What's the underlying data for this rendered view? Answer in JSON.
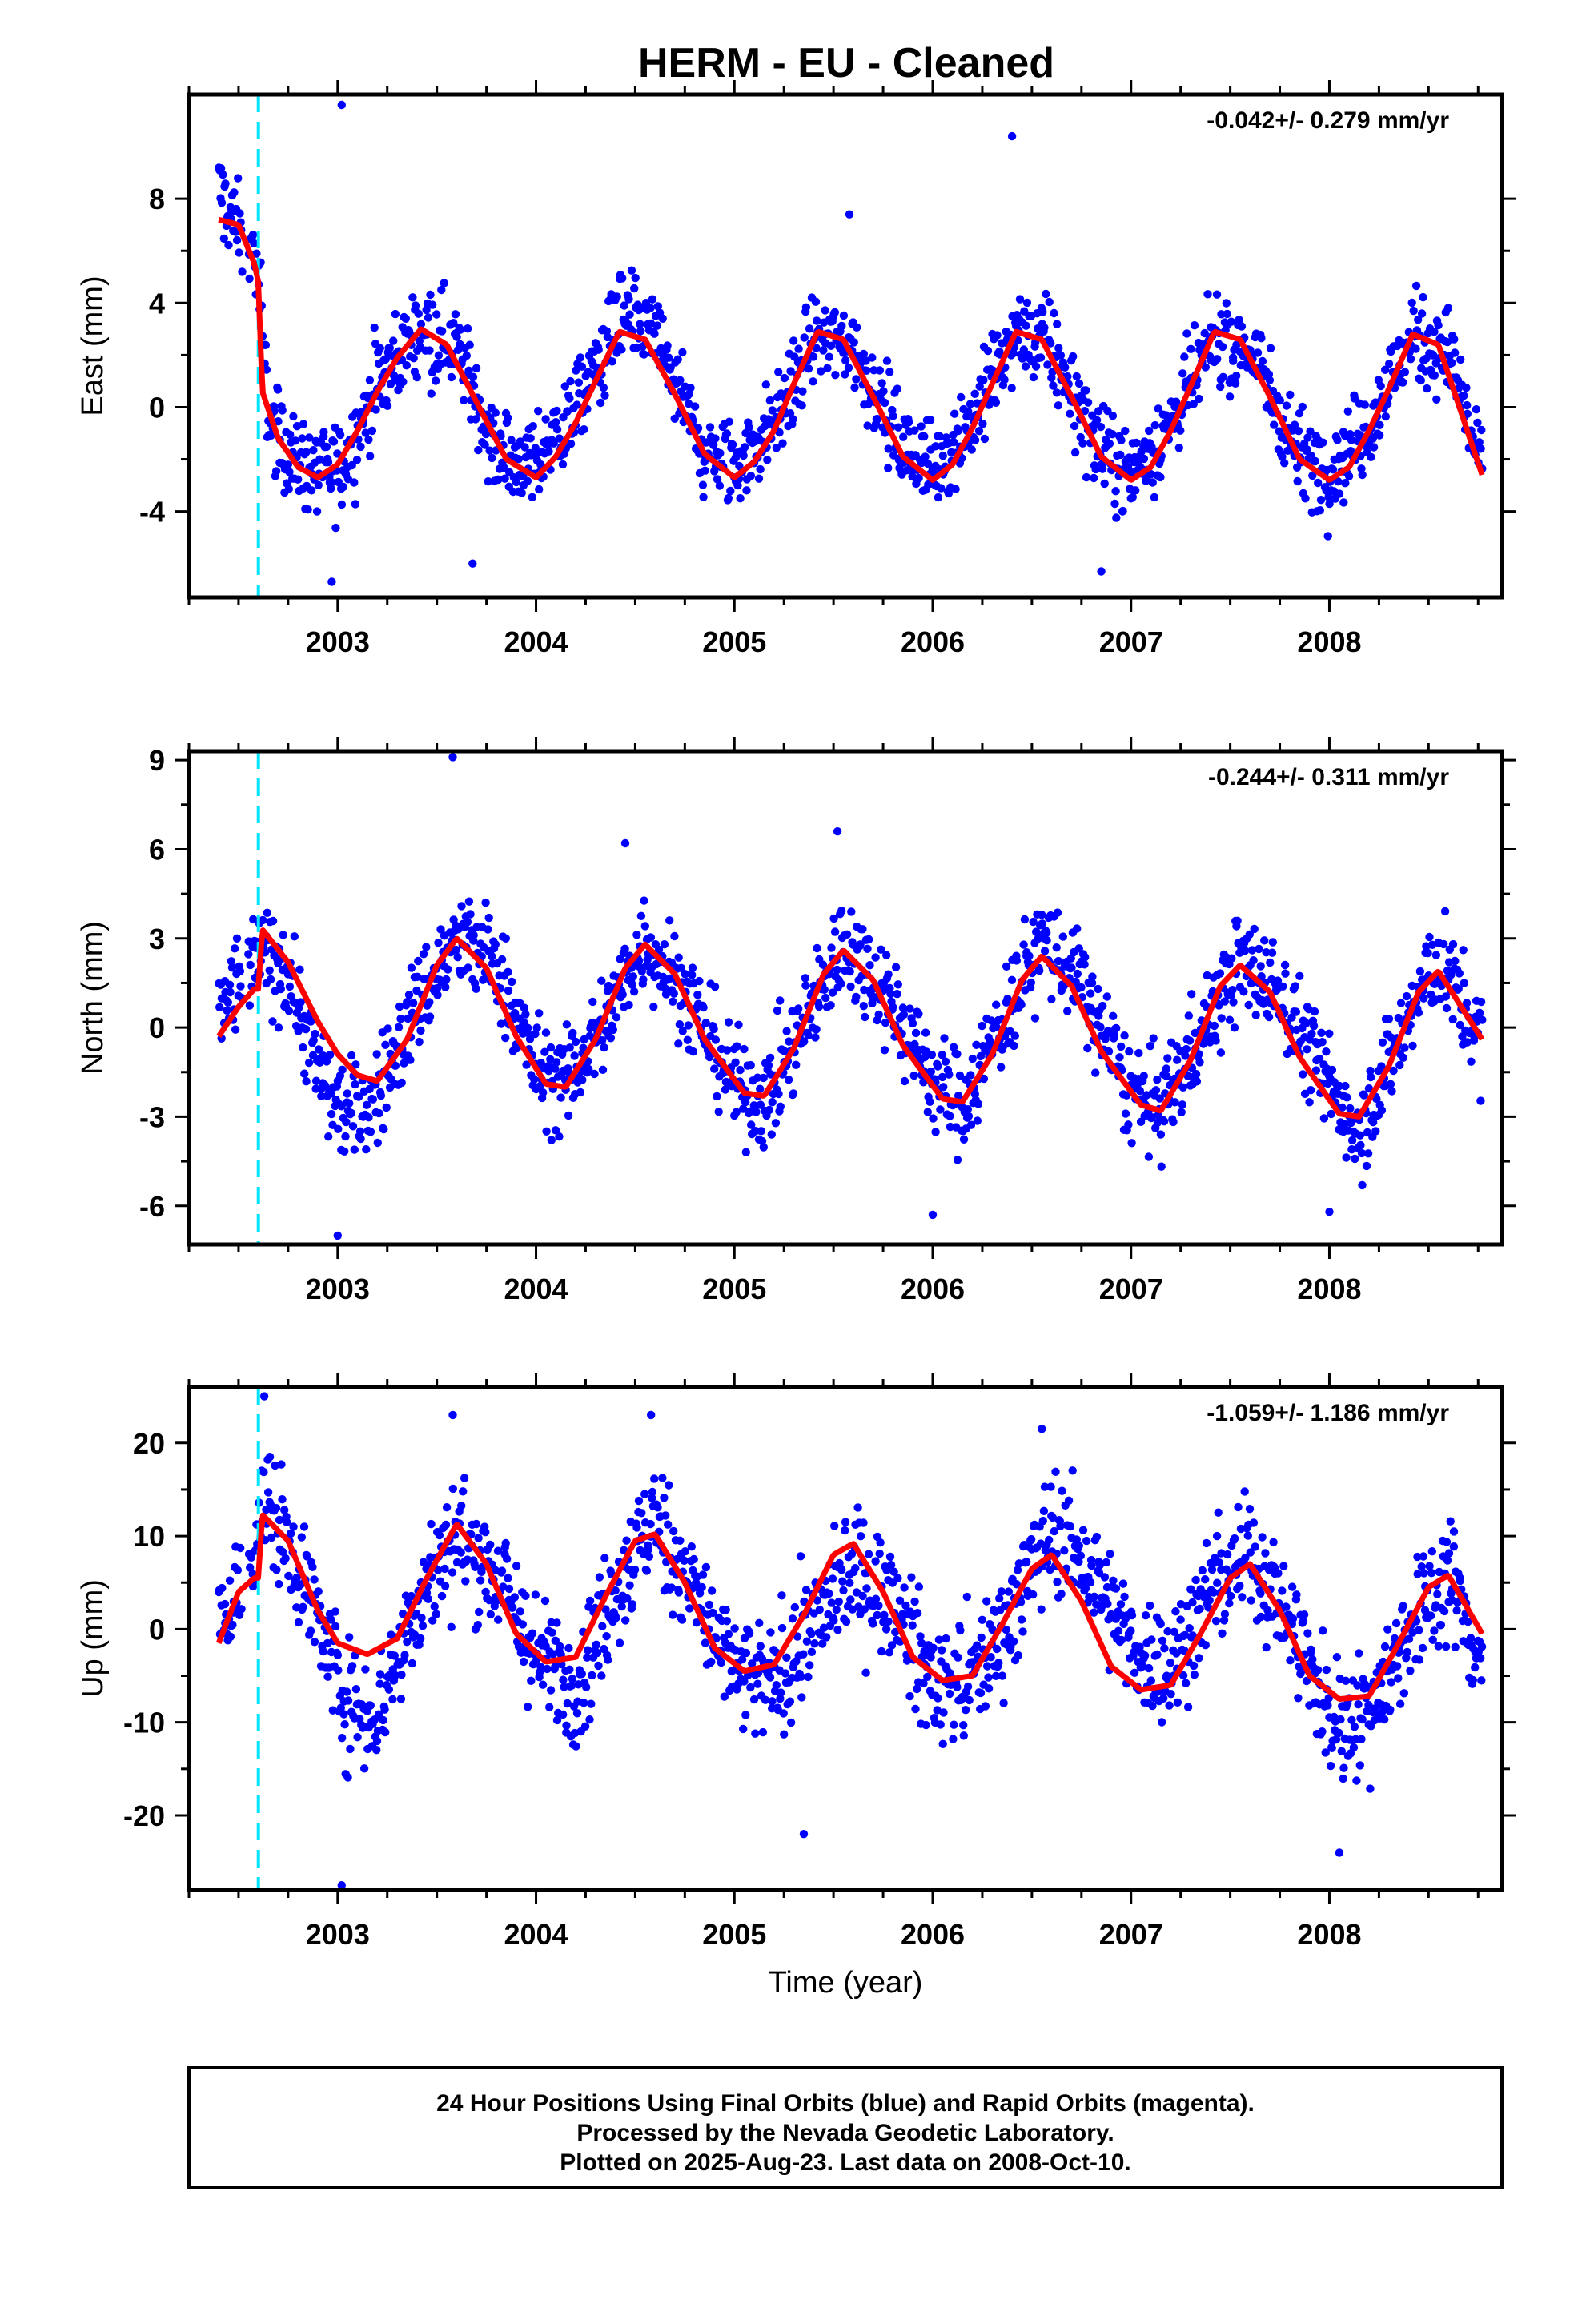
{
  "title": "HERM  - EU - Cleaned",
  "colors": {
    "points": "#0000ff",
    "model": "#ff0000",
    "break_line": "#00e5ff",
    "frame": "#000000"
  },
  "footer": {
    "line1": "24 Hour Positions Using Final Orbits (blue) and Rapid Orbits (magenta).",
    "line2": "Processed by the Nevada Geodetic Laboratory.",
    "line3": "Plotted on 2025-Aug-23. Last data on 2008-Oct-10."
  },
  "chart_data": [
    {
      "type": "scatter",
      "component": "east",
      "ylabel": "East (mm)",
      "xlabel": "",
      "rate_label": "-0.042+/- 0.279 mm/yr",
      "xlim": [
        2002.25,
        2008.87
      ],
      "ylim": [
        -7.3,
        12.0
      ],
      "xticks": [
        2003,
        2004,
        2005,
        2006,
        2007,
        2008
      ],
      "xtick_labels": [
        "2003",
        "2004",
        "2005",
        "2006",
        "2007",
        "2008"
      ],
      "yticks": [
        -4,
        0,
        4,
        8
      ],
      "ytick_labels": [
        "-4",
        "0",
        "4",
        "8"
      ],
      "equipment_break_year": 2002.6,
      "model": {
        "x": [
          2002.4,
          2002.5,
          2002.58,
          2002.6,
          2002.62,
          2002.7,
          2002.8,
          2002.9,
          2003.0,
          2003.1,
          2003.2,
          2003.3,
          2003.42,
          2003.55,
          2003.7,
          2003.85,
          2004.0,
          2004.1,
          2004.2,
          2004.3,
          2004.42,
          2004.55,
          2004.7,
          2004.85,
          2005.0,
          2005.1,
          2005.2,
          2005.3,
          2005.42,
          2005.55,
          2005.7,
          2005.85,
          2006.0,
          2006.1,
          2006.2,
          2006.3,
          2006.42,
          2006.55,
          2006.7,
          2006.85,
          2007.0,
          2007.1,
          2007.2,
          2007.3,
          2007.42,
          2007.55,
          2007.7,
          2007.85,
          2008.0,
          2008.1,
          2008.2,
          2008.3,
          2008.42,
          2008.55,
          2008.77
        ],
        "y": [
          7.2,
          7.0,
          5.5,
          4.8,
          0.6,
          -1.2,
          -2.3,
          -2.7,
          -2.2,
          -0.9,
          0.6,
          1.9,
          3.0,
          2.4,
          0.2,
          -2.0,
          -2.7,
          -1.9,
          -0.6,
          1.0,
          2.9,
          2.6,
          0.5,
          -1.8,
          -2.7,
          -2.1,
          -0.9,
          0.9,
          2.9,
          2.6,
          0.4,
          -1.9,
          -2.8,
          -2.2,
          -0.8,
          0.9,
          2.9,
          2.6,
          0.4,
          -1.9,
          -2.8,
          -2.3,
          -0.9,
          0.8,
          2.9,
          2.6,
          0.4,
          -2.0,
          -2.8,
          -2.3,
          -0.9,
          0.7,
          2.8,
          2.4,
          -2.6
        ]
      },
      "scatter_envelope": {
        "x": [
          2002.4,
          2002.5,
          2002.59,
          2002.65,
          2002.8,
          2003.0,
          2003.2,
          2003.42,
          2003.6,
          2003.8,
          2004.0,
          2004.2,
          2004.42,
          2004.6,
          2004.85,
          2005.0,
          2005.2,
          2005.42,
          2005.6,
          2005.85,
          2006.0,
          2006.2,
          2006.42,
          2006.6,
          2006.85,
          2007.0,
          2007.2,
          2007.42,
          2007.6,
          2007.85,
          2008.0,
          2008.2,
          2008.42,
          2008.6,
          2008.77
        ],
        "center": [
          8.3,
          6.8,
          5.6,
          -0.4,
          -2.2,
          -2.5,
          0.8,
          3.2,
          2.4,
          -1.8,
          -2.2,
          0.0,
          3.4,
          2.8,
          -1.9,
          -2.3,
          -0.6,
          2.8,
          2.3,
          -1.6,
          -2.3,
          -0.5,
          2.8,
          2.2,
          -1.7,
          -2.5,
          -0.7,
          2.6,
          2.2,
          -1.8,
          -2.4,
          -0.7,
          2.7,
          2.1,
          -2.4
        ],
        "spread": 1.2
      },
      "outliers": [
        {
          "x": 2003.02,
          "y": 11.6
        },
        {
          "x": 2006.4,
          "y": 10.4
        },
        {
          "x": 2003.68,
          "y": -6.0
        },
        {
          "x": 2002.97,
          "y": -6.7
        },
        {
          "x": 2005.58,
          "y": 7.4
        },
        {
          "x": 2006.85,
          "y": -6.3
        }
      ]
    },
    {
      "type": "scatter",
      "component": "north",
      "ylabel": "North (mm)",
      "xlabel": "",
      "rate_label": "-0.244+/- 0.311 mm/yr",
      "xlim": [
        2002.25,
        2008.87
      ],
      "ylim": [
        -7.3,
        9.3
      ],
      "xticks": [
        2003,
        2004,
        2005,
        2006,
        2007,
        2008
      ],
      "xtick_labels": [
        "2003",
        "2004",
        "2005",
        "2006",
        "2007",
        "2008"
      ],
      "yticks": [
        -6,
        -3,
        0,
        3,
        6,
        9
      ],
      "ytick_labels": [
        "-6",
        "-3",
        "0",
        "3",
        "6",
        "9"
      ],
      "equipment_break_year": 2002.6,
      "model": {
        "x": [
          2002.4,
          2002.5,
          2002.58,
          2002.6,
          2002.62,
          2002.75,
          2002.9,
          2003.0,
          2003.1,
          2003.2,
          2003.35,
          2003.5,
          2003.6,
          2003.75,
          2003.9,
          2004.05,
          2004.15,
          2004.3,
          2004.45,
          2004.55,
          2004.7,
          2004.85,
          2005.05,
          2005.15,
          2005.3,
          2005.45,
          2005.55,
          2005.7,
          2005.85,
          2006.05,
          2006.15,
          2006.3,
          2006.45,
          2006.55,
          2006.7,
          2006.85,
          2007.05,
          2007.15,
          2007.3,
          2007.45,
          2007.55,
          2007.7,
          2007.85,
          2008.05,
          2008.15,
          2008.3,
          2008.45,
          2008.55,
          2008.77
        ],
        "y": [
          -0.3,
          0.7,
          1.3,
          1.3,
          3.3,
          2.2,
          0.2,
          -0.9,
          -1.6,
          -1.8,
          -0.4,
          2.1,
          3.0,
          2.0,
          -0.3,
          -1.9,
          -2.0,
          -0.4,
          2.0,
          2.8,
          1.8,
          -0.4,
          -2.2,
          -2.3,
          -0.7,
          1.8,
          2.6,
          1.6,
          -0.6,
          -2.4,
          -2.5,
          -0.9,
          1.6,
          2.4,
          1.4,
          -0.8,
          -2.6,
          -2.8,
          -1.1,
          1.4,
          2.1,
          1.2,
          -1.0,
          -2.9,
          -3.0,
          -1.3,
          1.2,
          1.9,
          -0.4
        ]
      },
      "scatter_envelope": {
        "x": [
          2002.4,
          2002.5,
          2002.6,
          2002.75,
          2002.9,
          2003.05,
          2003.2,
          2003.4,
          2003.6,
          2003.8,
          2004.0,
          2004.15,
          2004.35,
          2004.55,
          2004.75,
          2005.0,
          2005.15,
          2005.35,
          2005.55,
          2005.75,
          2006.0,
          2006.15,
          2006.35,
          2006.55,
          2006.75,
          2007.0,
          2007.15,
          2007.35,
          2007.55,
          2007.75,
          2008.0,
          2008.15,
          2008.35,
          2008.55,
          2008.77
        ],
        "center": [
          0.8,
          1.4,
          2.4,
          2.0,
          -1.5,
          -3.0,
          -2.3,
          0.8,
          2.9,
          2.2,
          -1.4,
          -1.9,
          0.2,
          3.0,
          1.2,
          -1.9,
          -2.5,
          0.0,
          2.9,
          1.4,
          -1.8,
          -2.6,
          0.2,
          3.0,
          1.4,
          -2.2,
          -2.8,
          -0.2,
          2.2,
          1.2,
          -2.0,
          -3.4,
          -0.4,
          2.4,
          -0.6
        ],
        "spread": 1.2
      },
      "outliers": [
        {
          "x": 2003.58,
          "y": 9.1
        },
        {
          "x": 2004.45,
          "y": 6.2
        },
        {
          "x": 2005.52,
          "y": 6.6
        },
        {
          "x": 2003.0,
          "y": -7.0
        },
        {
          "x": 2006.0,
          "y": -6.3
        },
        {
          "x": 2008.0,
          "y": -6.2
        }
      ]
    },
    {
      "type": "scatter",
      "component": "up",
      "ylabel": "Up (mm)",
      "xlabel": "Time (year)",
      "rate_label": "-1.059+/- 1.186 mm/yr",
      "xlim": [
        2002.25,
        2008.87
      ],
      "ylim": [
        -28.0,
        26.0
      ],
      "xticks": [
        2003,
        2004,
        2005,
        2006,
        2007,
        2008
      ],
      "xtick_labels": [
        "2003",
        "2004",
        "2005",
        "2006",
        "2007",
        "2008"
      ],
      "yticks": [
        -20,
        -10,
        0,
        10,
        20
      ],
      "ytick_labels": [
        "-20",
        "-10",
        "0",
        "10",
        "20"
      ],
      "equipment_break_year": 2002.6,
      "model": {
        "x": [
          2002.4,
          2002.5,
          2002.58,
          2002.6,
          2002.62,
          2002.75,
          2002.9,
          2003.0,
          2003.15,
          2003.3,
          2003.45,
          2003.6,
          2003.75,
          2003.9,
          2004.05,
          2004.2,
          2004.35,
          2004.5,
          2004.6,
          2004.75,
          2004.9,
          2005.05,
          2005.2,
          2005.35,
          2005.5,
          2005.6,
          2005.75,
          2005.9,
          2006.05,
          2006.2,
          2006.35,
          2006.5,
          2006.6,
          2006.75,
          2006.9,
          2007.05,
          2007.2,
          2007.35,
          2007.5,
          2007.6,
          2007.75,
          2007.9,
          2008.05,
          2008.2,
          2008.35,
          2008.5,
          2008.6,
          2008.77
        ],
        "y": [
          -1.5,
          4.0,
          5.5,
          5.5,
          12.3,
          9.5,
          2.0,
          -1.5,
          -2.7,
          -1.0,
          5.5,
          11.3,
          7.0,
          -0.5,
          -3.5,
          -3.0,
          3.5,
          9.5,
          10.2,
          5.0,
          -2.0,
          -4.5,
          -3.8,
          1.5,
          8.0,
          9.2,
          4.0,
          -3.0,
          -5.5,
          -5.0,
          0.5,
          6.5,
          8.0,
          3.0,
          -4.0,
          -6.5,
          -6.0,
          -0.5,
          5.5,
          7.0,
          2.0,
          -5.0,
          -7.5,
          -7.2,
          -1.5,
          4.5,
          5.8,
          -0.5
        ]
      },
      "scatter_envelope": {
        "x": [
          2002.4,
          2002.5,
          2002.62,
          2002.75,
          2002.9,
          2003.05,
          2003.2,
          2003.4,
          2003.6,
          2003.8,
          2004.0,
          2004.2,
          2004.4,
          2004.6,
          2004.8,
          2005.0,
          2005.2,
          2005.4,
          2005.6,
          2005.8,
          2006.0,
          2006.2,
          2006.4,
          2006.6,
          2006.8,
          2007.0,
          2007.2,
          2007.4,
          2007.6,
          2007.8,
          2008.0,
          2008.2,
          2008.4,
          2008.6,
          2008.77
        ],
        "center": [
          1.0,
          3.5,
          13.5,
          10.0,
          1.0,
          -8.0,
          -9.0,
          3.0,
          10.0,
          6.0,
          -3.0,
          -6.0,
          4.0,
          12.0,
          4.0,
          -5.0,
          -6.0,
          0.5,
          6.5,
          3.0,
          -6.0,
          -5.5,
          2.0,
          11.0,
          6.0,
          -2.0,
          -4.0,
          4.0,
          8.5,
          1.0,
          -10.0,
          -8.5,
          0.0,
          6.0,
          -4.0
        ],
        "spread": 4.5
      },
      "outliers": [
        {
          "x": 2002.63,
          "y": 25.0
        },
        {
          "x": 2004.58,
          "y": 23.0
        },
        {
          "x": 2003.58,
          "y": 23.0
        },
        {
          "x": 2003.02,
          "y": -27.5
        },
        {
          "x": 2005.35,
          "y": -22.0
        },
        {
          "x": 2008.05,
          "y": -24.0
        },
        {
          "x": 2006.55,
          "y": 21.5
        }
      ]
    }
  ]
}
